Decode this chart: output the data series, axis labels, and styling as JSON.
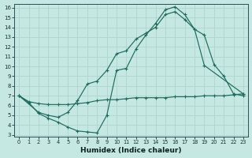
{
  "xlabel": "Humidex (Indice chaleur)",
  "xlim_min": -0.5,
  "xlim_max": 23.5,
  "ylim_min": 2.8,
  "ylim_max": 16.4,
  "xticks": [
    0,
    1,
    2,
    3,
    4,
    5,
    6,
    7,
    8,
    9,
    10,
    11,
    12,
    13,
    14,
    15,
    16,
    17,
    18,
    19,
    20,
    21,
    22,
    23
  ],
  "yticks": [
    3,
    4,
    5,
    6,
    7,
    8,
    9,
    10,
    11,
    12,
    13,
    14,
    15,
    16
  ],
  "bg_color": "#c5e8e2",
  "line_color": "#1f6b5e",
  "grid_color": "#b0d8d0",
  "line1_x": [
    0,
    1,
    2,
    3,
    4,
    5,
    6,
    7,
    8,
    9,
    10,
    11,
    12,
    13,
    14,
    15,
    16,
    17,
    18,
    19,
    20,
    21,
    22,
    23
  ],
  "line1_y": [
    7.0,
    6.3,
    5.2,
    4.7,
    4.3,
    3.8,
    3.4,
    3.3,
    3.2,
    5.0,
    9.6,
    9.8,
    11.8,
    13.2,
    14.4,
    15.8,
    16.1,
    15.3,
    13.8,
    13.2,
    10.2,
    9.0,
    7.2,
    7.0
  ],
  "line2_x": [
    0,
    2,
    3,
    4,
    5,
    6,
    7,
    8,
    9,
    10,
    11,
    12,
    13,
    14,
    15,
    16,
    17,
    18,
    19,
    23
  ],
  "line2_y": [
    7.0,
    5.3,
    5.0,
    4.8,
    5.3,
    6.5,
    8.2,
    8.5,
    9.6,
    11.3,
    11.6,
    12.8,
    13.4,
    14.0,
    15.3,
    15.6,
    14.8,
    13.8,
    10.1,
    7.2
  ],
  "line3_x": [
    0,
    1,
    2,
    3,
    4,
    5,
    6,
    7,
    8,
    9,
    10,
    11,
    12,
    13,
    14,
    15,
    16,
    17,
    18,
    19,
    20,
    21,
    22,
    23
  ],
  "line3_y": [
    7.0,
    6.4,
    6.2,
    6.1,
    6.1,
    6.1,
    6.2,
    6.3,
    6.5,
    6.6,
    6.6,
    6.7,
    6.8,
    6.8,
    6.8,
    6.8,
    6.9,
    6.9,
    6.9,
    7.0,
    7.0,
    7.0,
    7.1,
    7.2
  ]
}
